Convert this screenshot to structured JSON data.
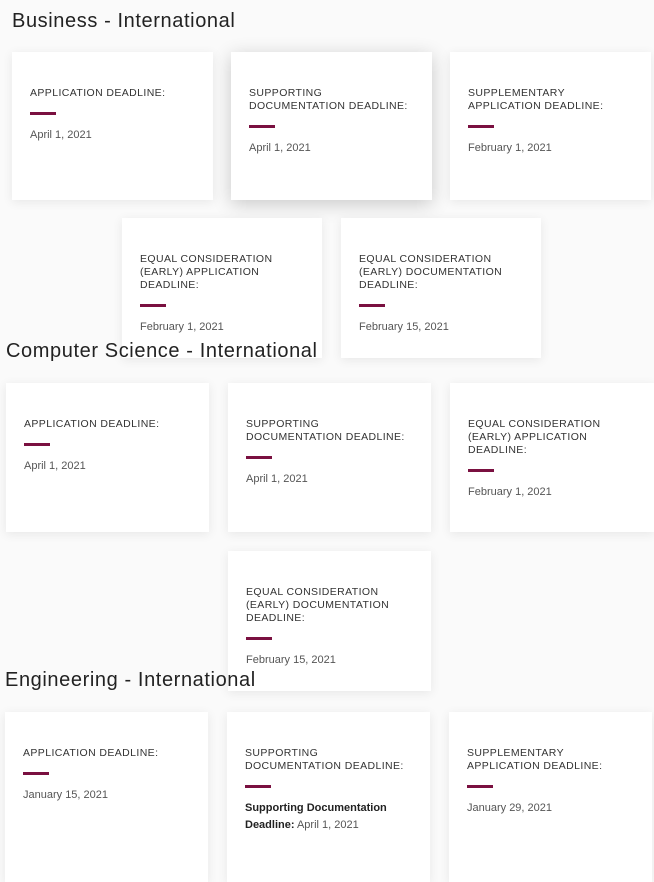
{
  "accent_color": "#7a1040",
  "sections": [
    {
      "title": "Business - International",
      "cards": [
        {
          "label": "APPLICATION DEADLINE:",
          "date": "April 1, 2021"
        },
        {
          "label": "SUPPORTING DOCUMENTATION DEADLINE:",
          "date": "April 1, 2021"
        },
        {
          "label": "SUPPLEMENTARY APPLICATION DEADLINE:",
          "date": "February 1, 2021"
        },
        {
          "label": "EQUAL CONSIDERATION (EARLY) APPLICATION DEADLINE:",
          "date": "February 1, 2021"
        },
        {
          "label": "EQUAL CONSIDERATION (EARLY) DOCUMENTATION DEADLINE:",
          "date": "February 15, 2021"
        }
      ]
    },
    {
      "title": "Computer Science - International",
      "cards": [
        {
          "label": "APPLICATION DEADLINE:",
          "date": "April 1, 2021"
        },
        {
          "label": "SUPPORTING DOCUMENTATION DEADLINE:",
          "date": "April 1, 2021"
        },
        {
          "label": "EQUAL CONSIDERATION (EARLY) APPLICATION DEADLINE:",
          "date": "February 1, 2021"
        },
        {
          "label": "EQUAL CONSIDERATION (EARLY) DOCUMENTATION DEADLINE:",
          "date": "February 15, 2021"
        }
      ]
    },
    {
      "title": "Engineering - International",
      "cards": [
        {
          "label": "APPLICATION DEADLINE:",
          "date": "January 15, 2021"
        },
        {
          "label": "SUPPORTING DOCUMENTATION DEADLINE:",
          "date_bold": "Supporting Documentation Deadline:",
          "date": "April 1, 2021"
        },
        {
          "label": "SUPPLEMENTARY APPLICATION DEADLINE:",
          "date": "January 29, 2021"
        }
      ]
    }
  ]
}
